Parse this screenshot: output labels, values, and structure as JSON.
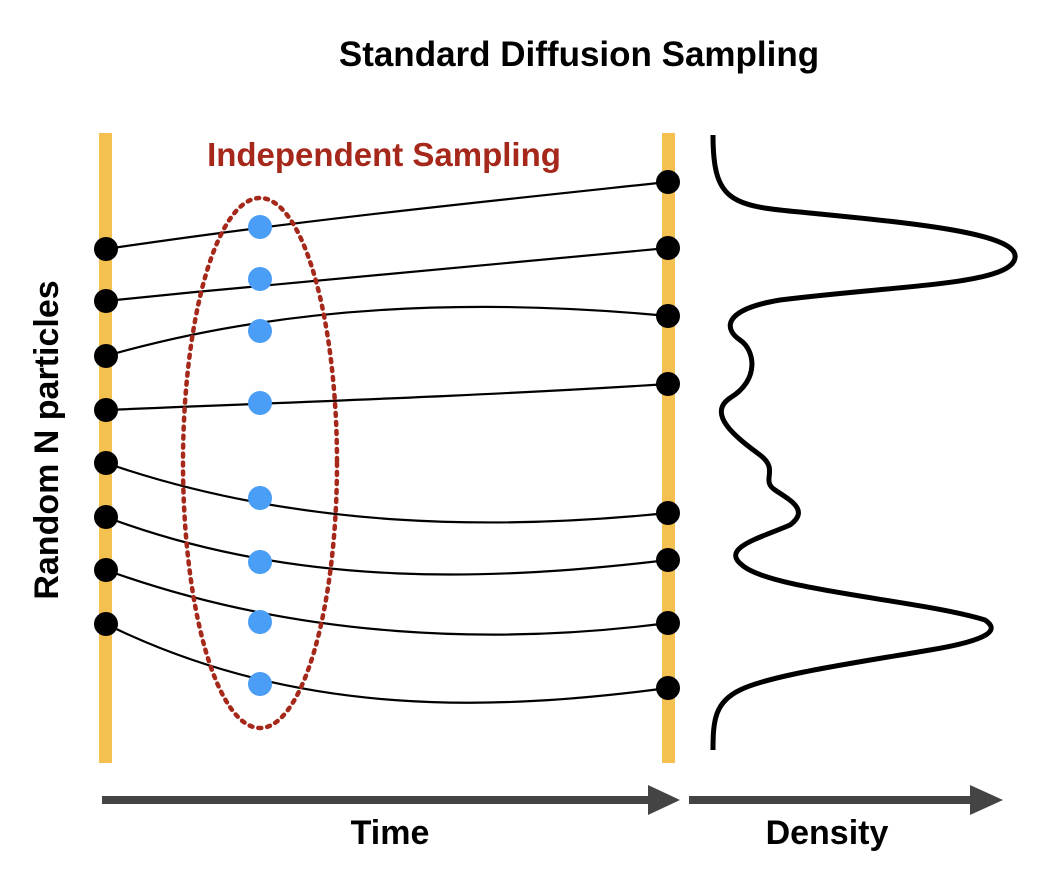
{
  "diagram": {
    "title": "Standard Diffusion Sampling",
    "annotation": "Independent Sampling",
    "y_axis_label": "Random N particles",
    "x_axis_label_time": "Time",
    "x_axis_label_density": "Density",
    "particle_count": 8,
    "colors": {
      "timeline_bar": "#f4c04f",
      "particle": "#000000",
      "intermediate_sample": "#4a9ef5",
      "annotation": "#a5281b",
      "arrow": "#444444",
      "line": "#000000"
    }
  }
}
